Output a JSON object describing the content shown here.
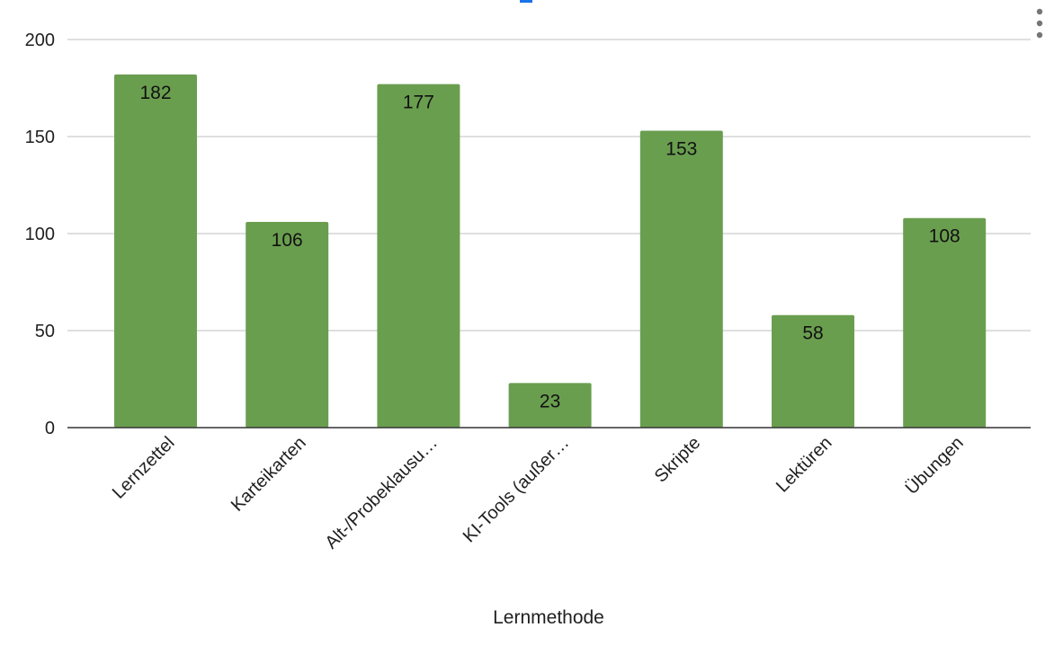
{
  "chart_data": {
    "type": "bar",
    "categories": [
      "Lernzettel",
      "Karteikarten",
      "Alt-/Probeklausu…",
      "KI-Tools (außer…",
      "Skripte",
      "Lektüren",
      "Übungen"
    ],
    "values": [
      182,
      106,
      177,
      23,
      153,
      58,
      108
    ],
    "data_labels": [
      "182",
      "106",
      "177",
      "23",
      "153",
      "58",
      "108"
    ],
    "title": "",
    "xlabel": "Lernmethode",
    "ylabel": "",
    "ylim": [
      0,
      200
    ],
    "yticks": [
      0,
      50,
      100,
      150,
      200
    ],
    "ytick_labels": [
      "0",
      "50",
      "100",
      "150",
      "200"
    ],
    "grid": true,
    "legend": "none",
    "bar_color": "#6a9e4f",
    "accent_color": "#1a73e8"
  },
  "menu_icon": "more-vertical-icon"
}
